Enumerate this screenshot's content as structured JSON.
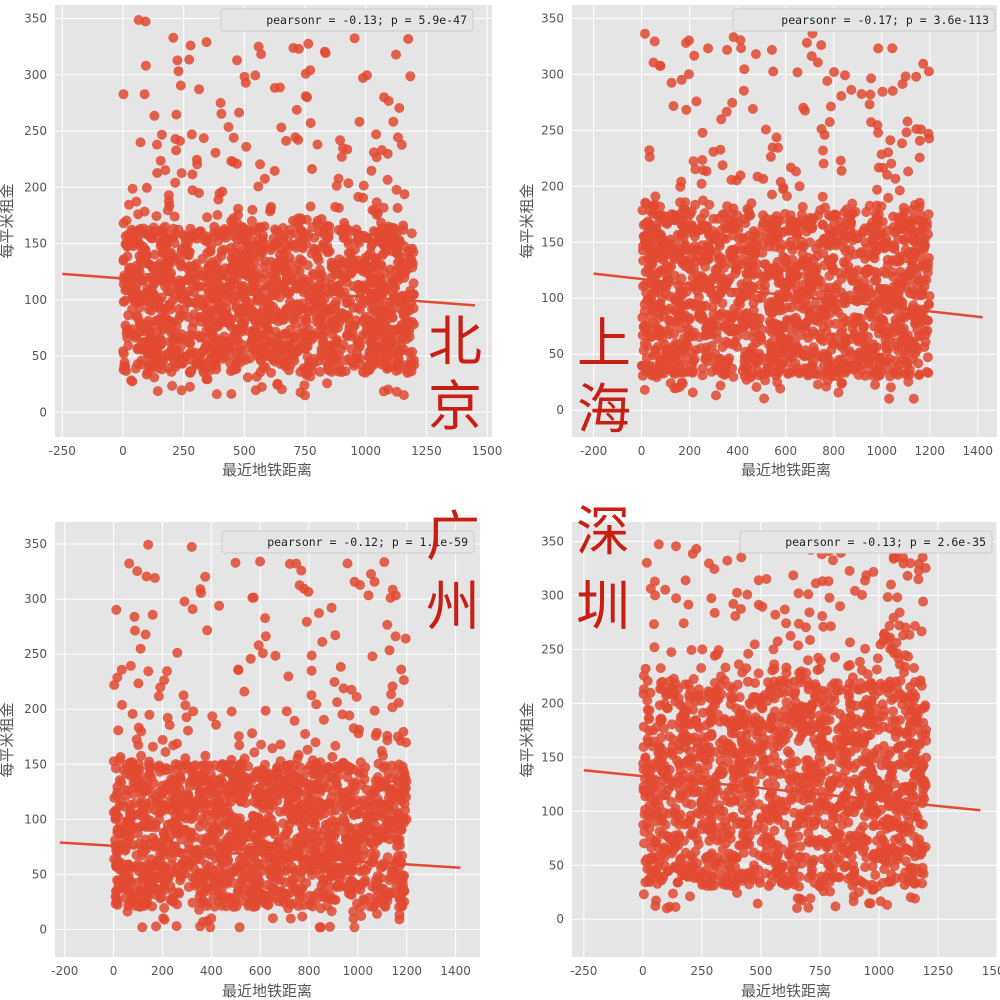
{
  "chart_data": [
    {
      "type": "scatter",
      "city": "北京",
      "annotation": "pearsonr = -0.13; p = 5.9e-47",
      "xlabel": "最近地铁距离",
      "ylabel": "每平米租金",
      "xlim": [
        -280,
        1520
      ],
      "ylim": [
        -22,
        362
      ],
      "xticks": [
        -250,
        0,
        250,
        500,
        750,
        1000,
        1250,
        1500
      ],
      "yticks": [
        0,
        50,
        100,
        150,
        200,
        250,
        300,
        350
      ],
      "x_range": [
        0,
        1200
      ],
      "body_y": [
        35,
        165
      ],
      "max_y": 350,
      "regression": {
        "x": [
          -250,
          1450
        ],
        "y": [
          123,
          95
        ]
      },
      "n_points": 1500,
      "seed": 11,
      "grid": true,
      "marker_color": "#e24a33",
      "background": "#e5e5e5"
    },
    {
      "type": "scatter",
      "city": "上海",
      "annotation": "pearsonr = -0.17; p = 3.6e-113",
      "xlabel": "最近地铁距离",
      "ylabel": "每平米租金",
      "xlim": [
        -290,
        1480
      ],
      "ylim": [
        -24,
        362
      ],
      "xticks": [
        -200,
        0,
        200,
        400,
        600,
        800,
        1000,
        1200,
        1400
      ],
      "yticks": [
        0,
        50,
        100,
        150,
        200,
        250,
        300,
        350
      ],
      "x_range": [
        0,
        1200
      ],
      "body_y": [
        30,
        175
      ],
      "max_y": 338,
      "regression": {
        "x": [
          -200,
          1420
        ],
        "y": [
          122,
          83
        ]
      },
      "n_points": 1500,
      "seed": 23,
      "grid": true,
      "marker_color": "#e24a33",
      "background": "#e5e5e5"
    },
    {
      "type": "scatter",
      "city": "广州",
      "annotation": "pearsonr = -0.12; p = 1.1e-59",
      "xlabel": "最近地铁距离",
      "ylabel": "每平米租金",
      "xlim": [
        -240,
        1500
      ],
      "ylim": [
        -25,
        370
      ],
      "xticks": [
        -200,
        0,
        200,
        400,
        600,
        800,
        1000,
        1200,
        1400
      ],
      "yticks": [
        0,
        50,
        100,
        150,
        200,
        250,
        300,
        350
      ],
      "x_range": [
        0,
        1200
      ],
      "body_y": [
        20,
        150
      ],
      "max_y": 350,
      "regression": {
        "x": [
          -220,
          1420
        ],
        "y": [
          79,
          56
        ]
      },
      "n_points": 1500,
      "seed": 37,
      "grid": true,
      "marker_color": "#e24a33",
      "background": "#e5e5e5"
    },
    {
      "type": "scatter",
      "city": "深圳",
      "annotation": "pearsonr = -0.13; p = 2.6e-35",
      "xlabel": "最近地铁距离",
      "ylabel": "每平米租金",
      "xlim": [
        -300,
        1500
      ],
      "ylim": [
        -35,
        368
      ],
      "xticks": [
        -250,
        0,
        250,
        500,
        750,
        1000,
        1250,
        1500
      ],
      "yticks": [
        0,
        50,
        100,
        150,
        200,
        250,
        300,
        350
      ],
      "x_range": [
        0,
        1200
      ],
      "body_y": [
        30,
        220
      ],
      "max_y": 350,
      "regression": {
        "x": [
          -250,
          1430
        ],
        "y": [
          138,
          101
        ]
      },
      "n_points": 1500,
      "seed": 53,
      "grid": true,
      "marker_color": "#e24a33",
      "background": "#e5e5e5"
    }
  ]
}
